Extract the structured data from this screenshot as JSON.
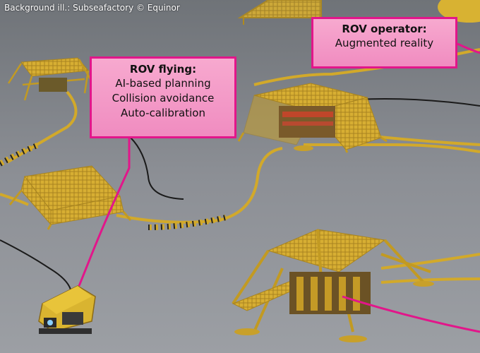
{
  "credit": "Background ill.: Subseafactory © Equinor",
  "callouts": {
    "rov_flying": {
      "title": "ROV flying:",
      "lines": [
        "AI-based planning",
        "Collision avoidance",
        "Auto-calibration"
      ]
    },
    "rov_operator": {
      "title": "ROV operator:",
      "lines": [
        "Augmented reality"
      ]
    }
  },
  "colors": {
    "seabed": "#8f9299",
    "callout_fill": "#f4a0c8",
    "callout_border": "#e2168a",
    "structure_yellow": "#d8b030",
    "cable_yellow": "#d2a92a"
  }
}
